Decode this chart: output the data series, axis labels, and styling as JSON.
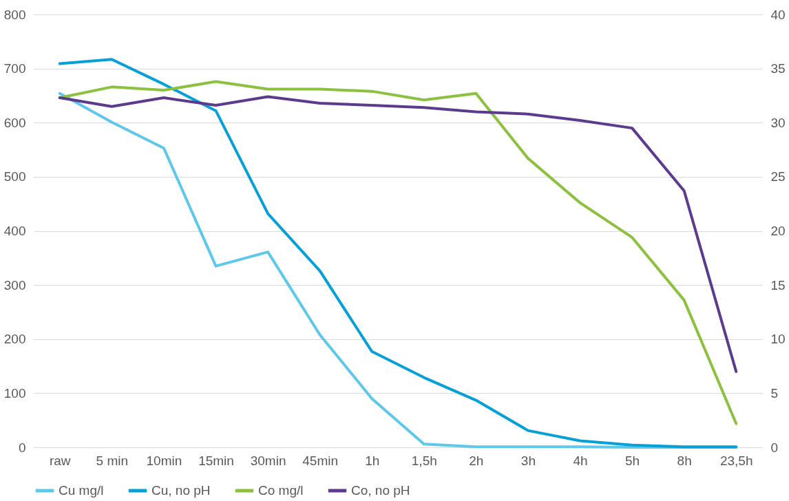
{
  "chart_data": {
    "type": "line",
    "categories": [
      "raw",
      "5 min",
      "10min",
      "15min",
      "30min",
      "45min",
      "1h",
      "1,5h",
      "2h",
      "3h",
      "4h",
      "5h",
      "8h",
      "23,5h"
    ],
    "series": [
      {
        "name": "Cu mg/l",
        "color": "#5ec8ea",
        "values": [
          654,
          601,
          553,
          335,
          361,
          208,
          90,
          6,
          1,
          1,
          1,
          0,
          0,
          0
        ]
      },
      {
        "name": "Cu, no pH",
        "color": "#06a0d8",
        "values": [
          709,
          717,
          671,
          622,
          432,
          326,
          177,
          129,
          87,
          31,
          12,
          4,
          1,
          1
        ]
      },
      {
        "name": "Co mg/l",
        "color": "#8cc13f",
        "axis": "y2",
        "values": [
          32.3,
          33.3,
          33.0,
          33.8,
          33.1,
          33.1,
          32.9,
          32.1,
          32.7,
          26.7,
          22.6,
          19.4,
          13.6,
          2.2
        ]
      },
      {
        "name": "Co, no pH",
        "color": "#5c3a8e",
        "axis": "y2",
        "values": [
          32.3,
          31.5,
          32.3,
          31.6,
          32.4,
          31.8,
          31.6,
          31.4,
          31.0,
          30.8,
          30.2,
          29.5,
          23.7,
          7.0
        ]
      }
    ],
    "ylim": [
      0,
      800
    ],
    "yticks": [
      0,
      100,
      200,
      300,
      400,
      500,
      600,
      700,
      800
    ],
    "y2lim": [
      0,
      40
    ],
    "y2ticks": [
      0,
      5,
      10,
      15,
      20,
      25,
      30,
      35,
      40
    ],
    "grid": "y",
    "legend": "bottom",
    "line_style": "solid"
  }
}
